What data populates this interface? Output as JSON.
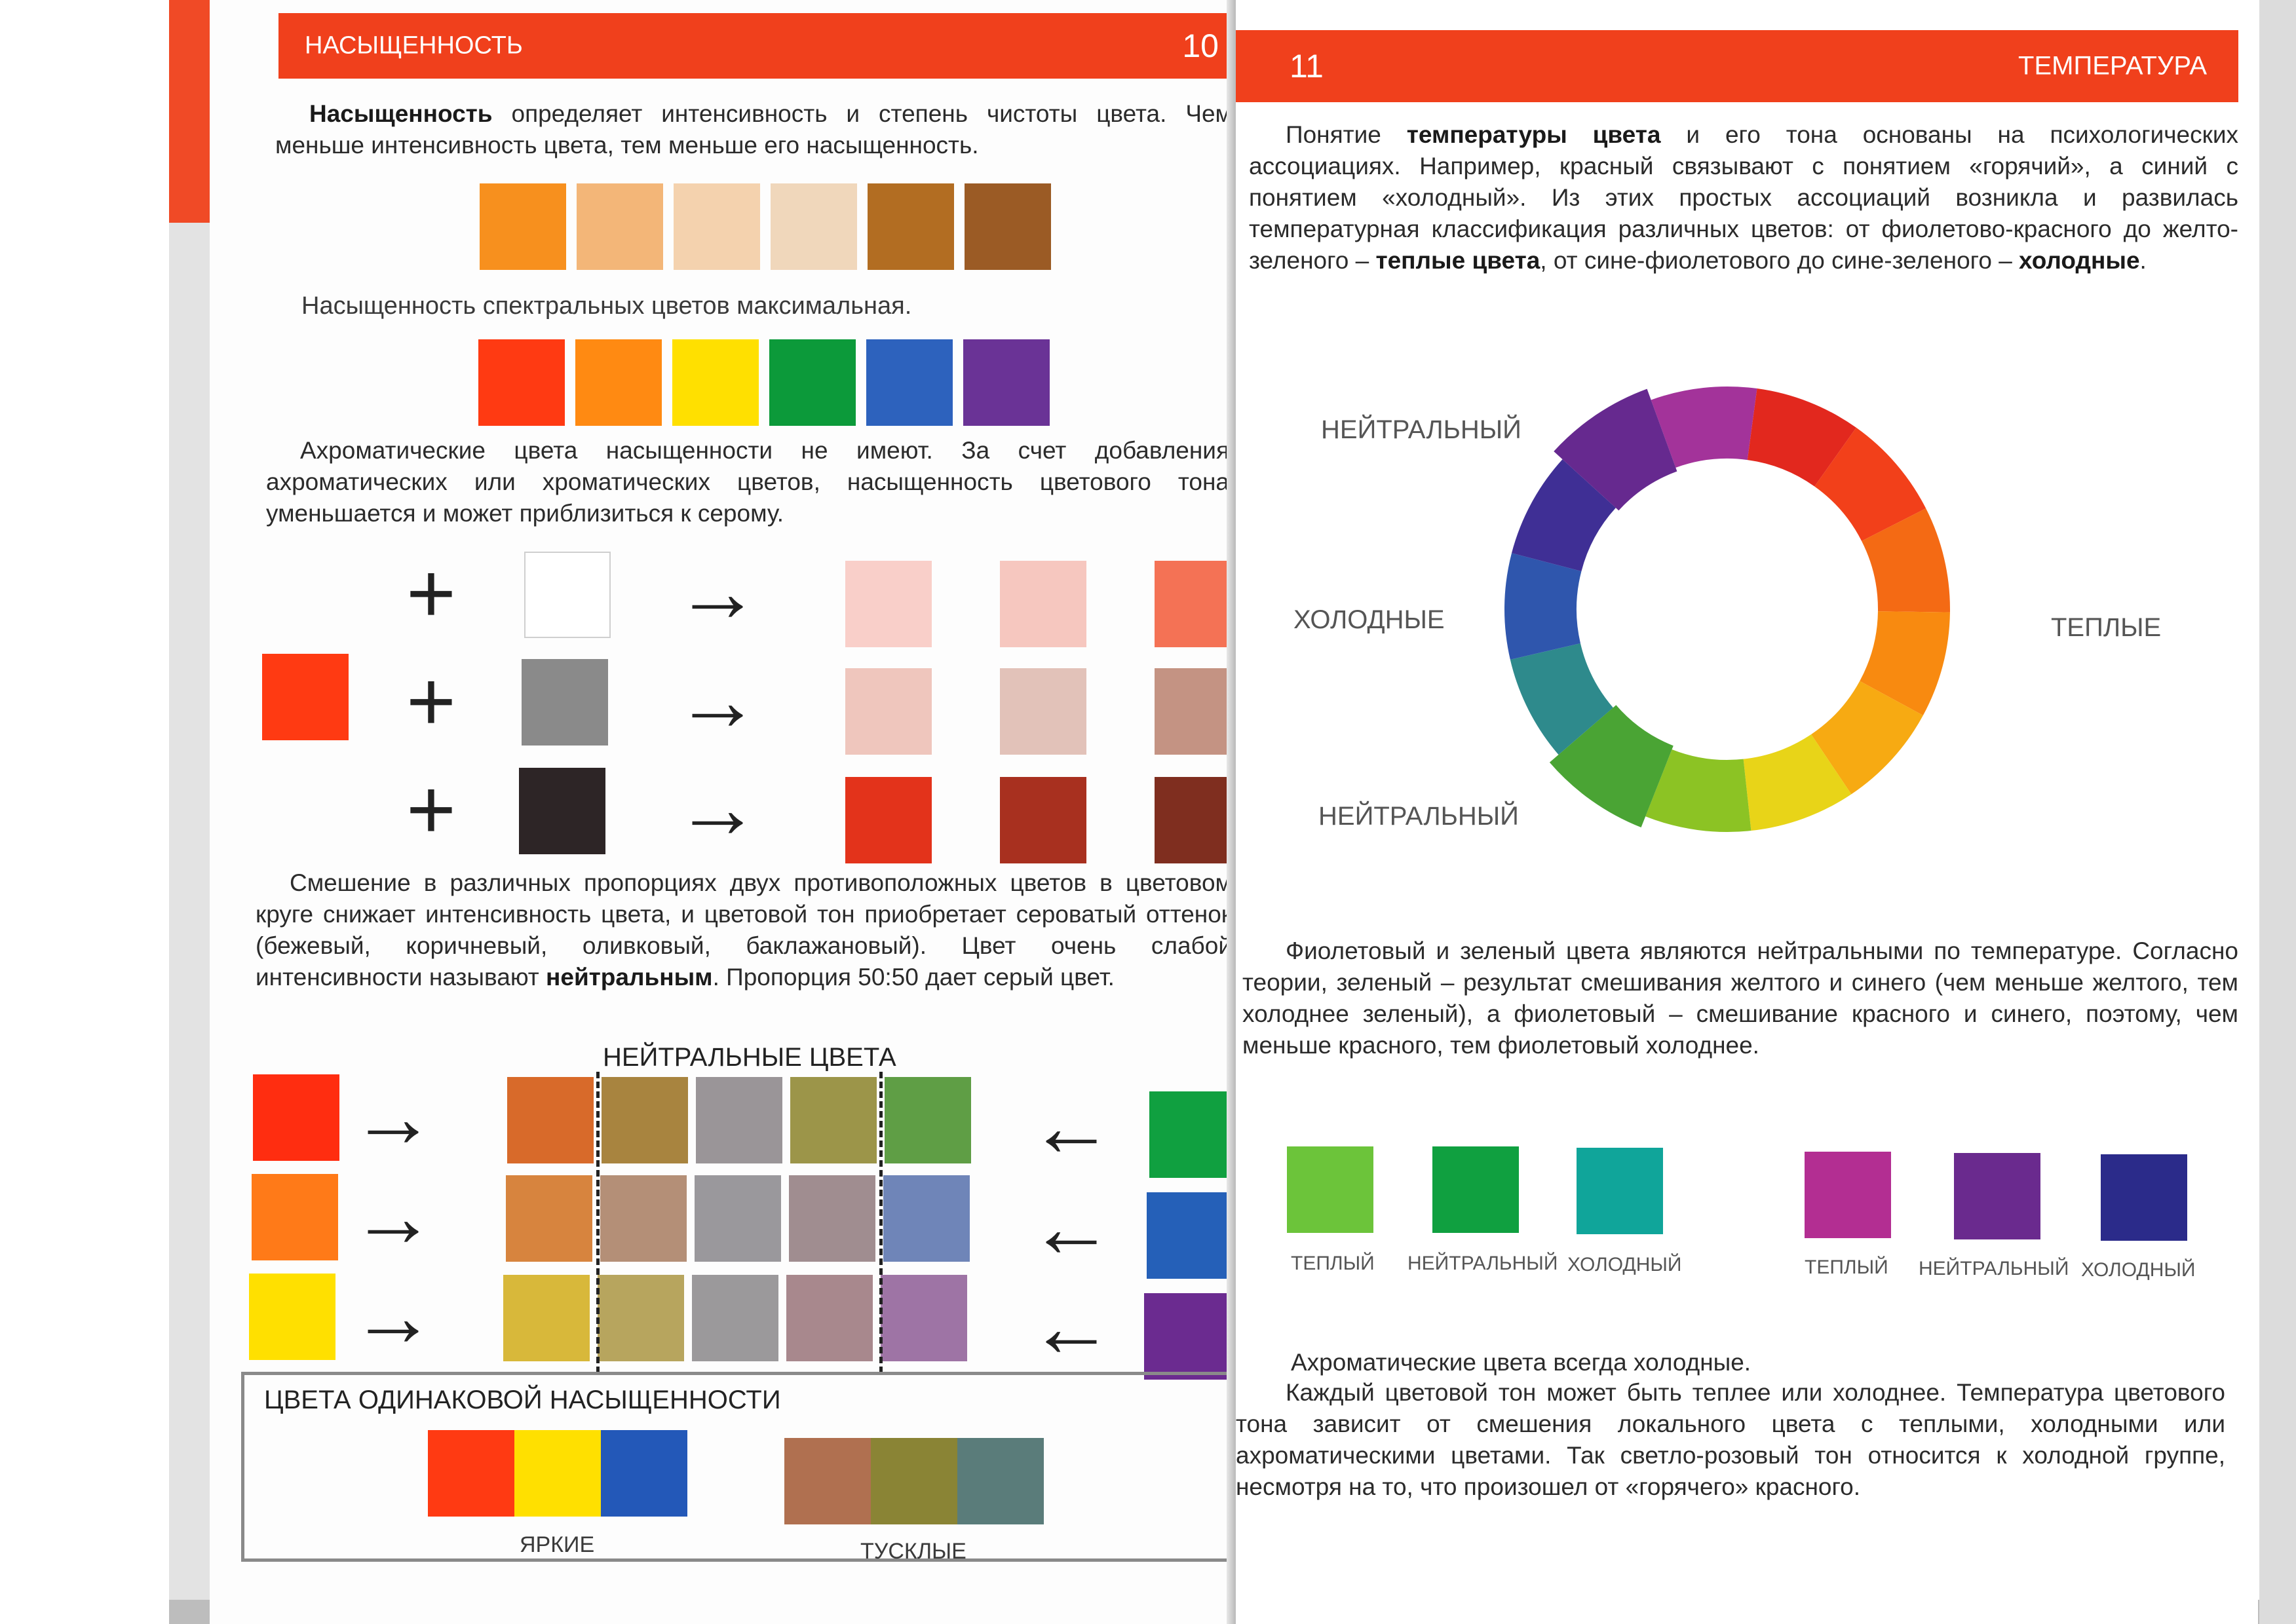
{
  "left_page": {
    "header_title": "НАСЫЩЕННОСТЬ",
    "page_number": "10",
    "para1_bold": "Насыщенность",
    "para1_rest": " определяет интенсивность и степень чистоты цвета. Чем меньше интенсивность цвета, тем меньше его насыщенность.",
    "row1_colors": [
      "#f7901e",
      "#f3b678",
      "#f4d2ae",
      "#f0d7bb",
      "#b26d22",
      "#9b5b25"
    ],
    "caption_spectral": "Насыщенность спектральных цветов максимальная.",
    "row2_colors": [
      "#ff3a12",
      "#ff8a12",
      "#ffe000",
      "#0c9a3a",
      "#2d62bd",
      "#6a3396"
    ],
    "para2": "Ахроматические цвета насыщенности не имеют. За счет добавления ахроматических или хроматических цветов, насыщенность цветового тона уменьшается и может приблизиться к серому.",
    "mix": {
      "base_color": "#ff3a12",
      "plus_symbol": "+",
      "arrow_symbol": "→",
      "add_colors": [
        "#ffffff",
        "#8a8a8a",
        "#2d2526"
      ],
      "results": [
        [
          "#f9cfc9",
          "#f6c7bf",
          "#f47255"
        ],
        [
          "#efc6bd",
          "#e2c2b9",
          "#c49383"
        ],
        [
          "#e3331b",
          "#a8301f",
          "#7f2e1f"
        ]
      ]
    },
    "para3_part1": "Смешение в различных пропорциях двух противоположных цветов в цветовом круге снижает интенсивность цвета, и цветовой тон приобретает сероватый оттенок (бежевый, коричневый, оливковый, баклажановый). Цвет очень слабой интенсивности называют ",
    "para3_bold": "нейтральным",
    "para3_part2": ". Пропорция 50:50 дает серый цвет.",
    "neutral_title": "НЕЙТРАЛЬНЫЕ ЦВЕТА",
    "left_sources": [
      "#ff2d10",
      "#ff7a18",
      "#ffe000"
    ],
    "right_sources": [
      "#10a040",
      "#2560b8",
      "#6b2b90"
    ],
    "arrow_right": "→",
    "arrow_left": "←",
    "neutral_grid": [
      [
        "#d86a2a",
        "#a8843f",
        "#9a9598",
        "#9c9549",
        "#5f9e45"
      ],
      [
        "#d7843e",
        "#b48f77",
        "#9a989c",
        "#a08d90",
        "#6f85b8"
      ],
      [
        "#d8b83a",
        "#b7a55e",
        "#9b999b",
        "#a8888d",
        "#9e74a5"
      ]
    ],
    "equal_box_title": "ЦВЕТА ОДИНАКОВОЙ НАСЫЩЕННОСТИ",
    "bright_colors": [
      "#ff3a12",
      "#ffe000",
      "#2358b8"
    ],
    "dull_colors": [
      "#b07050",
      "#8a8435",
      "#5a7c7a"
    ],
    "bright_label": "ЯРКИЕ",
    "dull_label": "ТУСКЛЫЕ"
  },
  "right_page": {
    "page_number": "11",
    "header_title": "ТЕМПЕРАТУРА",
    "para1_a": "Понятие ",
    "para1_b": "температуры цвета",
    "para1_c": " и его тона основаны на психологических ассоциациях. Например, красный связывают с понятием «горячий», а синий с понятием «холодный». Из этих простых ассоциаций возникла и развилась температурная классификация различных цветов: от фиолетово-красного до желто-зеленого – ",
    "para1_d": "теплые цвета",
    "para1_e": ", от сине-фиолетового до сине-зеленого – ",
    "para1_f": "холодные",
    "para1_g": ".",
    "wheel_colors": [
      "#a3339a",
      "#e2281e",
      "#f2401a",
      "#f46a14",
      "#f88a10",
      "#f7aa12",
      "#e8d418",
      "#8cc324",
      "#4aa434",
      "#2e8a8c",
      "#2f56ad",
      "#3f2f95",
      "#66298f"
    ],
    "label_neutral_top": "НЕЙТРАЛЬНЫЙ",
    "label_cold": "ХОЛОДНЫЕ",
    "label_warm": "ТЕПЛЫЕ",
    "label_neutral_bottom": "НЕЙТРАЛЬНЫЙ",
    "para2": "Фиолетовый и зеленый цвета являются нейтральными по температуре. Согласно теории, зеленый – результат смешивания желтого и синего (чем меньше желтого, тем холоднее зеленый), а фиолетовый – смешивание красного и синего, поэтому, чем меньше красного, тем фиолетовый холоднее.",
    "greens": [
      {
        "color": "#6cc43a",
        "label": "ТЕПЛЫЙ"
      },
      {
        "color": "#10a040",
        "label": "НЕЙТРАЛЬНЫЙ"
      },
      {
        "color": "#10a59a",
        "label": "ХОЛОДНЫЙ"
      }
    ],
    "violets": [
      {
        "color": "#b32e92",
        "label": "ТЕПЛЫЙ"
      },
      {
        "color": "#6a2a8e",
        "label": "НЕЙТРАЛЬНЫЙ"
      },
      {
        "color": "#2b2b8a",
        "label": "ХОЛОДНЫЙ"
      }
    ],
    "para3": "Ахроматические цвета всегда холодные.",
    "para4": "Каждый цветовой тон может быть теплее или холоднее. Температура цветового тона зависит от смешения локального цвета с теплыми, холодными или ахроматическими цветами. Так светло-розовый тон относится к холодной группе, несмотря на то, что произошел от «горячего» красного."
  }
}
